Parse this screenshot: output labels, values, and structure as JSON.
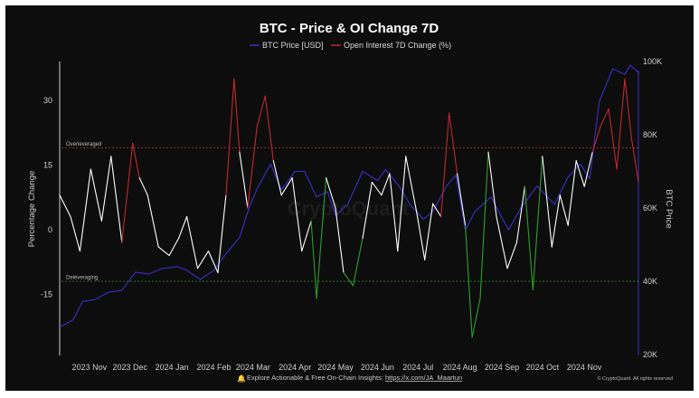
{
  "chart_data": {
    "type": "line",
    "title": "BTC - Price & OI Change 7D",
    "legend": {
      "placement": "top-center",
      "entries": [
        "BTC Price [USD]",
        "Open Interest 7D Change (%)"
      ]
    },
    "xlabel": "",
    "ylabel": "Percentage Change",
    "y2label": "BTC Price",
    "x_ticks": [
      "2023 Nov",
      "2023 Dec",
      "2024 Jan",
      "2024 Feb",
      "2024 Mar",
      "2024 Apr",
      "2024 May",
      "2024 Jun",
      "2024 Jul",
      "2024 Aug",
      "2024 Sep",
      "2024 Oct",
      "2024 Nov"
    ],
    "x_tick_dates": [
      "2023-11-01",
      "2023-12-01",
      "2024-01-01",
      "2024-02-01",
      "2024-03-01",
      "2024-04-01",
      "2024-05-01",
      "2024-06-01",
      "2024-07-01",
      "2024-08-01",
      "2024-09-01",
      "2024-10-01",
      "2024-11-01"
    ],
    "xlim": [
      "2023-10-10",
      "2024-12-11"
    ],
    "y_ticks": [
      30,
      15,
      0,
      -15
    ],
    "ylim": [
      -29,
      39
    ],
    "y2_ticks": [
      "100K",
      "80K",
      "60K",
      "40K",
      "20K"
    ],
    "y2_tick_values": [
      100000,
      80000,
      60000,
      40000,
      20000
    ],
    "y2lim": [
      20000,
      100000
    ],
    "grid": false,
    "thresholds": [
      {
        "label": "Overleveraged",
        "value": 19,
        "color": "#a83232"
      },
      {
        "label": "Deleveraging",
        "value": -12,
        "color": "#2f8f2f"
      }
    ],
    "series": [
      {
        "name": "BTC Price [USD]",
        "axis": "right",
        "color": "#3b2fc9",
        "dates": [
          "2023-10-10",
          "2023-10-20",
          "2023-10-27",
          "2023-11-05",
          "2023-11-15",
          "2023-11-25",
          "2023-12-05",
          "2023-12-15",
          "2023-12-25",
          "2024-01-05",
          "2024-01-12",
          "2024-01-22",
          "2024-02-01",
          "2024-02-10",
          "2024-02-20",
          "2024-02-28",
          "2024-03-05",
          "2024-03-14",
          "2024-03-22",
          "2024-04-01",
          "2024-04-08",
          "2024-04-17",
          "2024-04-25",
          "2024-05-01",
          "2024-05-10",
          "2024-05-21",
          "2024-06-01",
          "2024-06-07",
          "2024-06-17",
          "2024-06-25",
          "2024-07-05",
          "2024-07-12",
          "2024-07-22",
          "2024-07-29",
          "2024-08-05",
          "2024-08-12",
          "2024-08-24",
          "2024-09-06",
          "2024-09-15",
          "2024-09-27",
          "2024-10-10",
          "2024-10-20",
          "2024-10-29",
          "2024-11-05",
          "2024-11-12",
          "2024-11-22",
          "2024-12-01",
          "2024-12-05",
          "2024-12-11"
        ],
        "values": [
          27500,
          29500,
          34500,
          35000,
          37000,
          37500,
          42500,
          42000,
          43500,
          44000,
          43000,
          40500,
          43000,
          47500,
          52000,
          61000,
          66000,
          72000,
          65000,
          70000,
          70000,
          63000,
          64500,
          58000,
          61000,
          70000,
          67500,
          70500,
          66000,
          61000,
          57000,
          59000,
          66000,
          69000,
          54000,
          59000,
          63000,
          54000,
          60000,
          66000,
          61000,
          68500,
          72000,
          68000,
          89000,
          98000,
          96500,
          99000,
          97000
        ]
      },
      {
        "name": "Open Interest 7D Change (%)",
        "axis": "left",
        "color": "#ffffff",
        "color_above_overleveraged": "#c0282d",
        "color_below_deleveraging": "#2f9e2f",
        "dates": [
          "2023-10-10",
          "2023-10-18",
          "2023-10-25",
          "2023-11-02",
          "2023-11-10",
          "2023-11-17",
          "2023-11-25",
          "2023-12-03",
          "2023-12-08",
          "2023-12-14",
          "2023-12-22",
          "2023-12-30",
          "2024-01-06",
          "2024-01-12",
          "2024-01-20",
          "2024-01-28",
          "2024-02-04",
          "2024-02-10",
          "2024-02-16",
          "2024-02-20",
          "2024-02-26",
          "2024-03-04",
          "2024-03-10",
          "2024-03-16",
          "2024-03-22",
          "2024-03-30",
          "2024-04-06",
          "2024-04-13",
          "2024-04-17",
          "2024-04-24",
          "2024-05-01",
          "2024-05-07",
          "2024-05-14",
          "2024-05-21",
          "2024-05-28",
          "2024-06-04",
          "2024-06-10",
          "2024-06-16",
          "2024-06-22",
          "2024-06-30",
          "2024-07-06",
          "2024-07-12",
          "2024-07-18",
          "2024-07-24",
          "2024-07-30",
          "2024-08-05",
          "2024-08-10",
          "2024-08-16",
          "2024-08-22",
          "2024-08-28",
          "2024-09-05",
          "2024-09-12",
          "2024-09-18",
          "2024-09-24",
          "2024-10-01",
          "2024-10-08",
          "2024-10-14",
          "2024-10-20",
          "2024-10-26",
          "2024-11-01",
          "2024-11-07",
          "2024-11-13",
          "2024-11-19",
          "2024-11-25",
          "2024-12-01",
          "2024-12-06",
          "2024-12-11"
        ],
        "values": [
          8,
          3,
          -5,
          14,
          2,
          17,
          -3,
          20,
          12,
          8,
          -4,
          -6,
          -2,
          3,
          -9,
          -5,
          -10,
          8,
          35,
          18,
          5,
          24,
          31,
          16,
          8,
          12,
          -5,
          2,
          -16,
          12,
          5,
          -10,
          -13,
          -2,
          11,
          8,
          13,
          -5,
          17,
          4,
          -7,
          6,
          3,
          27,
          13,
          1,
          -25,
          -16,
          18,
          3,
          -9,
          -3,
          10,
          -14,
          17,
          -4,
          8,
          1,
          16,
          10,
          18,
          24,
          28,
          14,
          35,
          21,
          11
        ]
      }
    ],
    "watermark": "CryptoQuant",
    "footer_text": "Explore Actionable & Free On-Chain Insights: ",
    "footer_link": "https://x.com/JA_Maartun",
    "credit": "© CryptoQuant. All rights reserved",
    "colors": {
      "background": "#0d0d0d",
      "price": "#3b2fc9",
      "oi": "#ffffff",
      "oi_high": "#c0282d",
      "oi_low": "#2f9e2f"
    }
  }
}
